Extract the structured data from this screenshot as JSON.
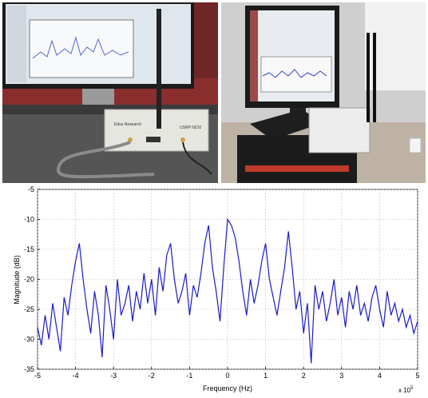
{
  "photos": {
    "left": {
      "device_label": "Ettus Research",
      "device_model": "USRP N210"
    },
    "right": {}
  },
  "chart_data": {
    "type": "line",
    "xlabel": "Frequency (Hz)",
    "ylabel": "Magnitude (dB)",
    "x_multiplier": "x 10",
    "x_multiplier_exp": "5",
    "xlim": [
      -5,
      5
    ],
    "ylim": [
      -35,
      -5
    ],
    "x_ticks": [
      -5,
      -4,
      -3,
      -2,
      -1,
      0,
      1,
      2,
      3,
      4,
      5
    ],
    "y_ticks": [
      -5,
      -10,
      -15,
      -20,
      -25,
      -30,
      -35
    ],
    "grid": true,
    "color": "#1a1acc",
    "series": [
      {
        "name": "",
        "x": [
          -5.0,
          -4.9,
          -4.8,
          -4.7,
          -4.6,
          -4.5,
          -4.4,
          -4.3,
          -4.2,
          -4.1,
          -4.0,
          -3.9,
          -3.8,
          -3.7,
          -3.6,
          -3.5,
          -3.4,
          -3.3,
          -3.2,
          -3.1,
          -3.0,
          -2.9,
          -2.8,
          -2.7,
          -2.6,
          -2.5,
          -2.4,
          -2.3,
          -2.2,
          -2.1,
          -2.0,
          -1.9,
          -1.8,
          -1.7,
          -1.6,
          -1.5,
          -1.4,
          -1.3,
          -1.2,
          -1.1,
          -1.0,
          -0.9,
          -0.8,
          -0.7,
          -0.6,
          -0.5,
          -0.4,
          -0.3,
          -0.2,
          -0.1,
          0.0,
          0.1,
          0.2,
          0.3,
          0.4,
          0.5,
          0.6,
          0.7,
          0.8,
          0.9,
          1.0,
          1.1,
          1.2,
          1.3,
          1.4,
          1.5,
          1.6,
          1.7,
          1.8,
          1.9,
          2.0,
          2.1,
          2.2,
          2.3,
          2.4,
          2.5,
          2.6,
          2.7,
          2.8,
          2.9,
          3.0,
          3.1,
          3.2,
          3.3,
          3.4,
          3.5,
          3.6,
          3.7,
          3.8,
          3.9,
          4.0,
          4.1,
          4.2,
          4.3,
          4.4,
          4.5,
          4.6,
          4.7,
          4.8,
          4.9,
          5.0
        ],
        "y": [
          -28,
          -31,
          -26,
          -30,
          -24,
          -28,
          -32,
          -23,
          -26,
          -21,
          -17,
          -14,
          -20,
          -25,
          -29,
          -22,
          -26,
          -33,
          -21,
          -25,
          -30,
          -20,
          -26,
          -24,
          -21,
          -27,
          -22,
          -25,
          -19,
          -24,
          -20,
          -26,
          -18,
          -22,
          -16,
          -14,
          -20,
          -24,
          -22,
          -19,
          -26,
          -21,
          -23,
          -19,
          -14,
          -11,
          -18,
          -22,
          -27,
          -18,
          -10,
          -11,
          -13,
          -17,
          -22,
          -26,
          -20,
          -24,
          -21,
          -17,
          -14,
          -20,
          -23,
          -26,
          -22,
          -18,
          -12,
          -18,
          -25,
          -22,
          -29,
          -24,
          -34,
          -21,
          -25,
          -22,
          -27,
          -24,
          -20,
          -26,
          -23,
          -28,
          -22,
          -25,
          -21,
          -26,
          -24,
          -27,
          -23,
          -21,
          -25,
          -28,
          -22,
          -26,
          -24,
          -27,
          -25,
          -28,
          -26,
          -29,
          -27
        ]
      }
    ]
  }
}
